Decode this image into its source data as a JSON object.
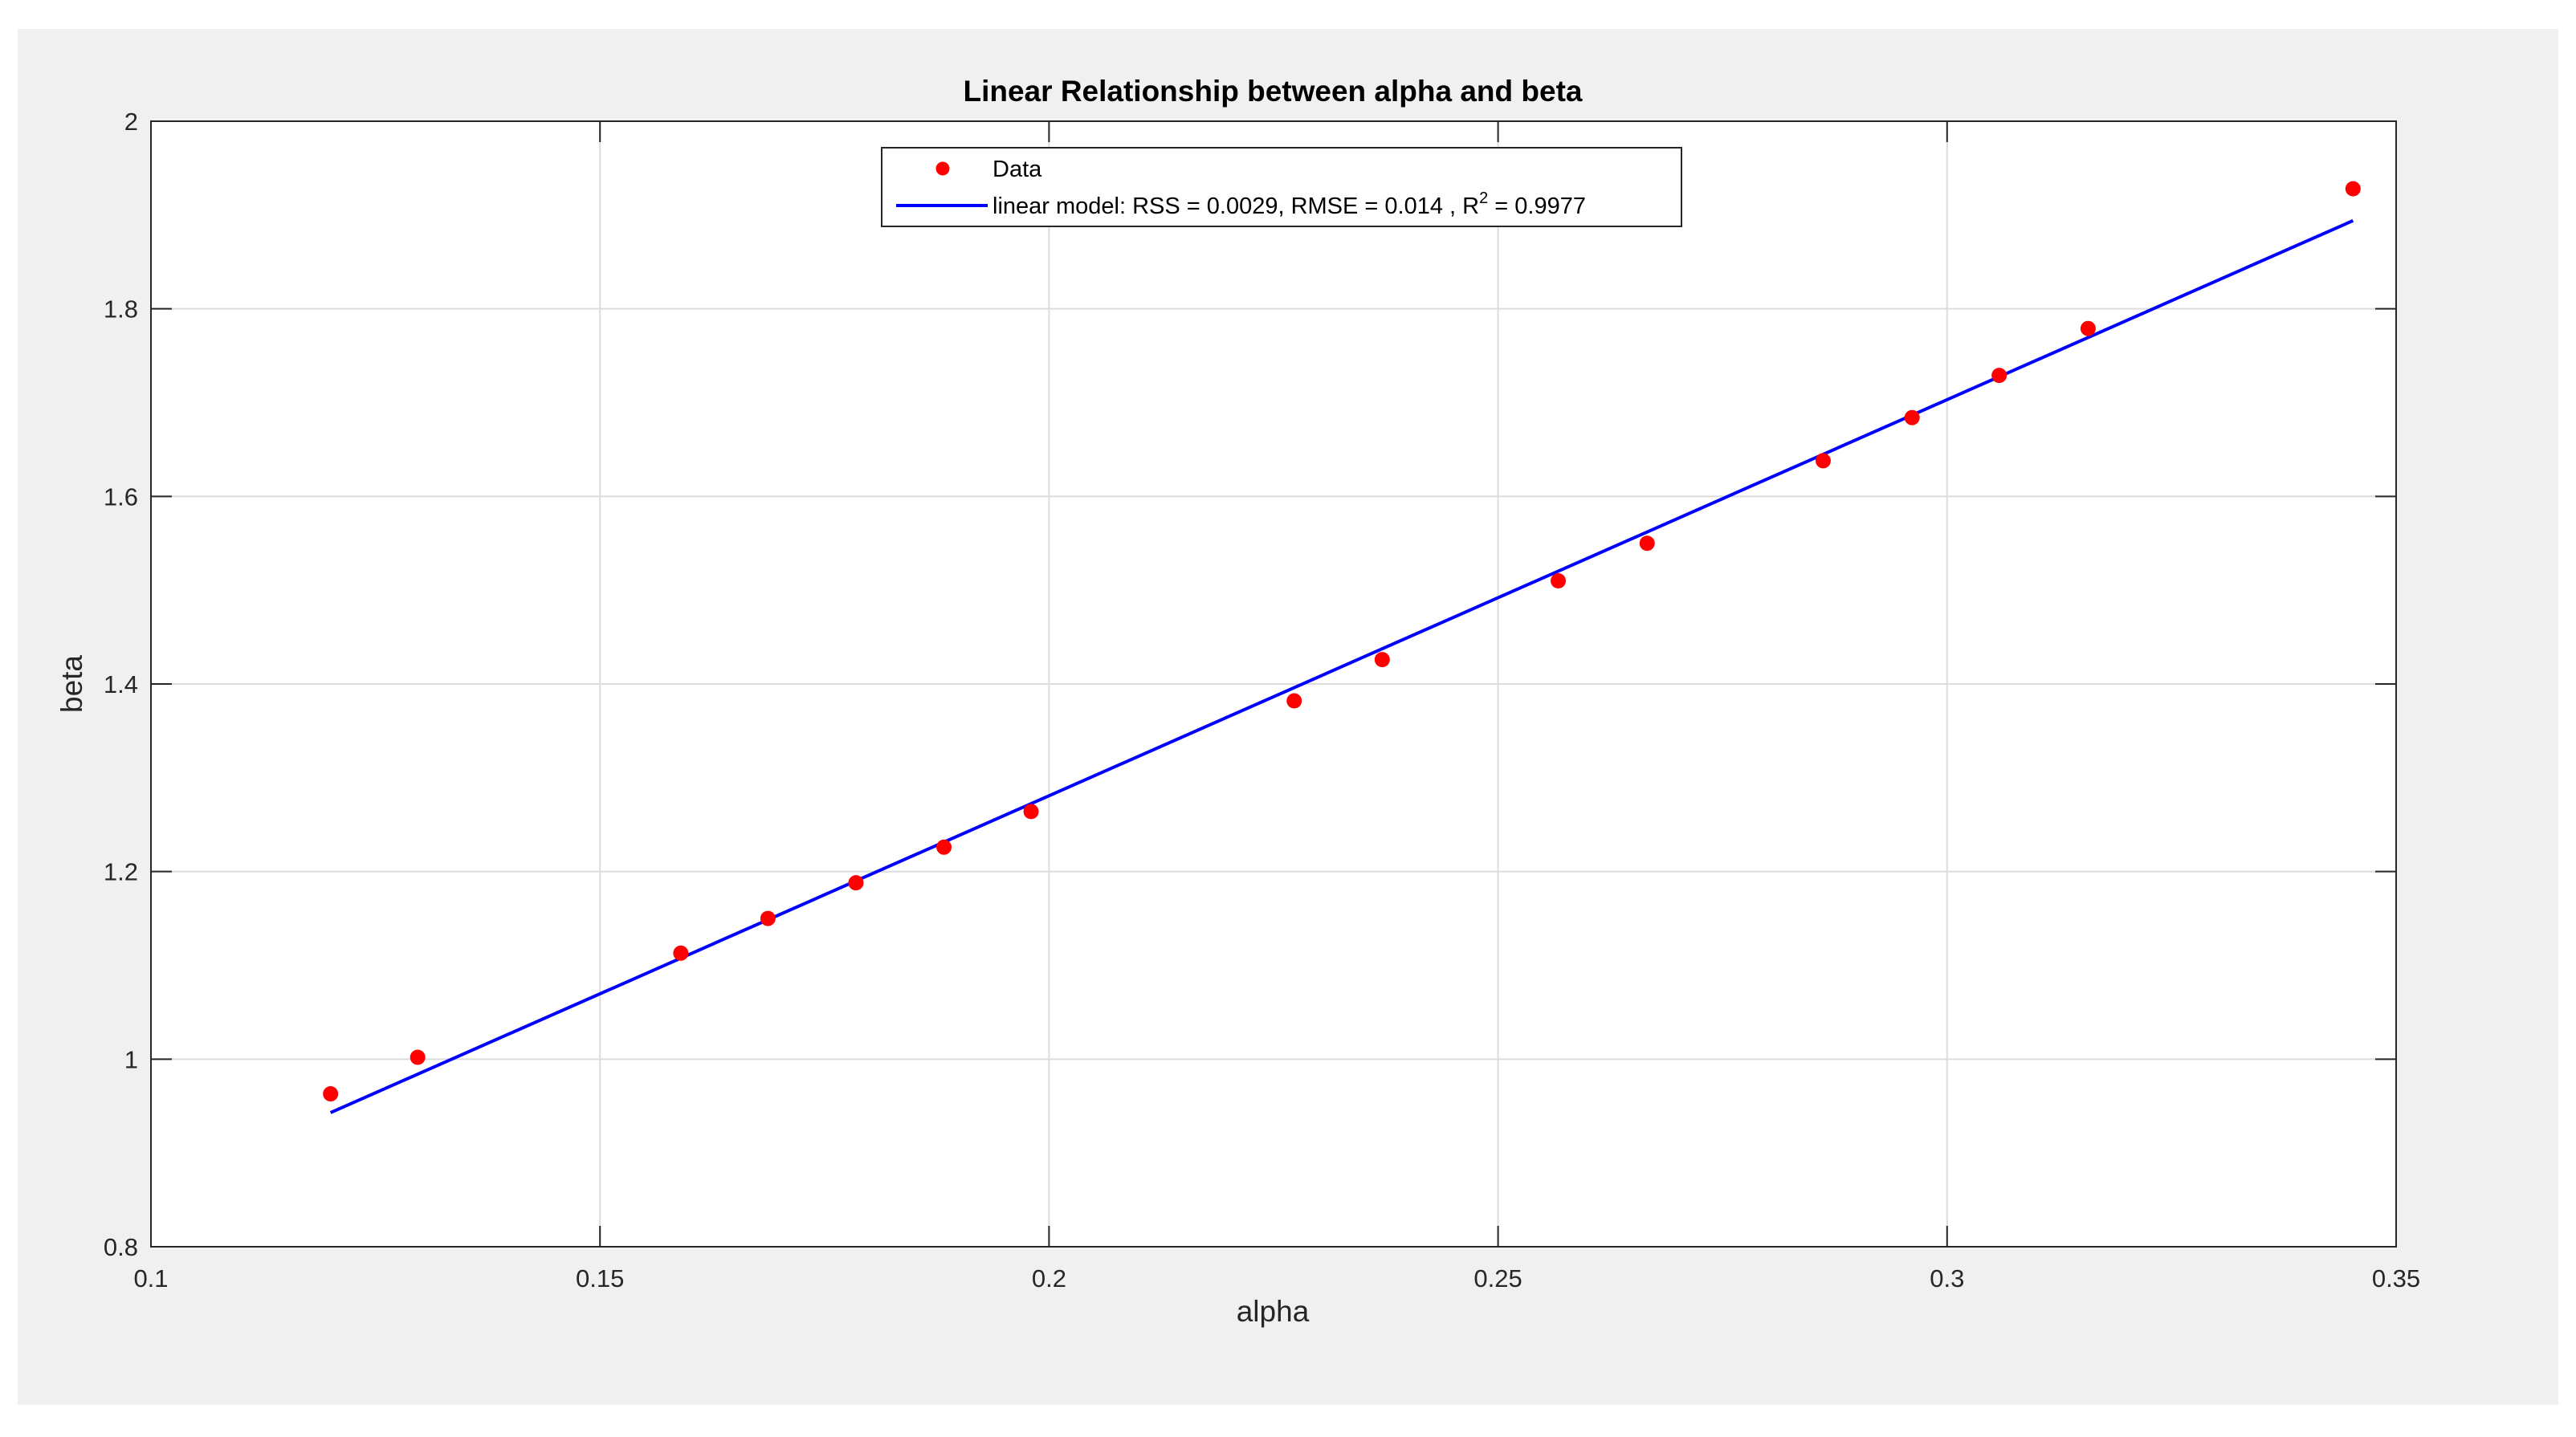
{
  "chart_data": {
    "type": "scatter",
    "title": "Linear Relationship between alpha and beta",
    "xlabel": "alpha",
    "ylabel": "beta",
    "xlim": [
      0.1,
      0.35
    ],
    "ylim": [
      0.8,
      2.0
    ],
    "xticks": [
      "0.1",
      "0.15",
      "0.2",
      "0.25",
      "0.3",
      "0.35"
    ],
    "yticks": [
      "0.8",
      "1",
      "1.2",
      "1.4",
      "1.6",
      "1.8",
      "2"
    ],
    "grid": true,
    "legend_position": "top-center",
    "series": [
      {
        "name": "Data",
        "kind": "scatter",
        "color": "#ff0000",
        "x": [
          0.12,
          0.1297,
          0.159,
          0.1687,
          0.1785,
          0.1883,
          0.198,
          0.2273,
          0.2371,
          0.2567,
          0.2666,
          0.2862,
          0.2961,
          0.3058,
          0.3157,
          0.3452
        ],
        "y": [
          0.963,
          1.002,
          1.113,
          1.15,
          1.188,
          1.226,
          1.264,
          1.382,
          1.426,
          1.51,
          1.55,
          1.638,
          1.684,
          1.729,
          1.779,
          1.928
        ]
      },
      {
        "name": "linear model: RSS = 0.0029,  RMSE = 0.014 , R",
        "name_superscript": "2",
        "name_suffix": " = 0.9977",
        "kind": "line",
        "color": "#0000ff",
        "x": [
          0.12,
          0.3452
        ],
        "y": [
          0.943,
          1.894
        ]
      }
    ]
  }
}
